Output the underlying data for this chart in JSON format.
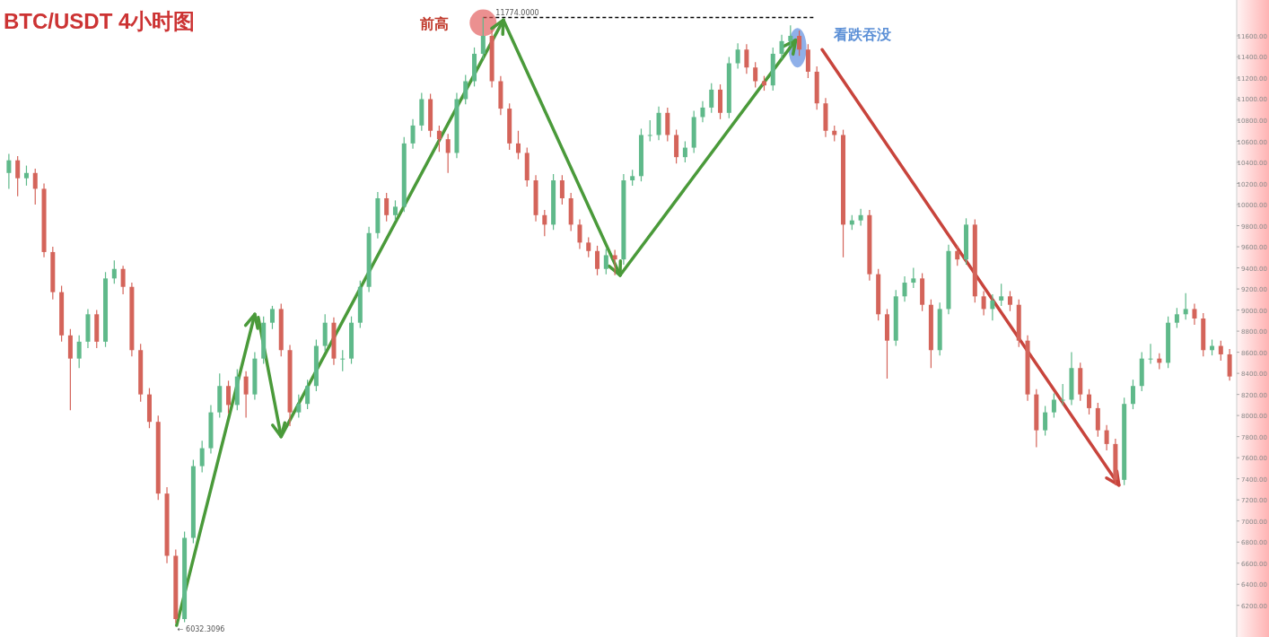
{
  "chart_data": {
    "type": "candlestick",
    "title": "BTC/USDT  4小时图",
    "categories": [
      null,
      null,
      null,
      null,
      null,
      null,
      null,
      null,
      null,
      null,
      null,
      null,
      null,
      null,
      null,
      null,
      null,
      null,
      null,
      null,
      null,
      null,
      null,
      null,
      null,
      null,
      null,
      null,
      null,
      null,
      null,
      null,
      null,
      null,
      null,
      null,
      null,
      null,
      null,
      null,
      null,
      null,
      null,
      null,
      null,
      null,
      null,
      null,
      null,
      null,
      null,
      null,
      null,
      null,
      null,
      null,
      null,
      null,
      null,
      null,
      null,
      null,
      null,
      null,
      null,
      null,
      null,
      null,
      null,
      null,
      null,
      null,
      null,
      null,
      null,
      null,
      null,
      null,
      null,
      null,
      null,
      null,
      null,
      null,
      null,
      null,
      null,
      null,
      null,
      null,
      null,
      null,
      null,
      null,
      null,
      null,
      null,
      null,
      null,
      null,
      null,
      null,
      null,
      null,
      null,
      null,
      null,
      null,
      null,
      null,
      null,
      null,
      null,
      null,
      null,
      null,
      null,
      null,
      null,
      null,
      null,
      null,
      null,
      null,
      null,
      null,
      null,
      null,
      null,
      null,
      null,
      null,
      null,
      null,
      null,
      null,
      null,
      null,
      null,
      null
    ],
    "colors": [
      "#5fb98a",
      "#d4645a",
      "#5fb98a",
      "#d4645a",
      "#d4645a",
      "#d4645a",
      "#d4645a",
      "#d4645a",
      "#5fb98a",
      "#5fb98a",
      "#d4645a",
      "#5fb98a",
      "#5fb98a",
      "#d4645a",
      "#d4645a",
      "#d4645a",
      "#d4645a",
      "#d4645a",
      "#d4645a",
      "#d4645a",
      "#5fb98a",
      "#5fb98a",
      "#5fb98a",
      "#5fb98a",
      "#5fb98a",
      "#d4645a",
      "#5fb98a",
      "#d4645a",
      "#5fb98a",
      "#5fb98a",
      "#5fb98a",
      "#d4645a",
      "#d4645a",
      "#5fb98a",
      "#5fb98a",
      "#5fb98a",
      "#5fb98a",
      "#d4645a",
      "#5fb98a",
      "#5fb98a",
      "#5fb98a",
      "#5fb98a",
      "#5fb98a",
      "#d4645a",
      "#5fb98a",
      "#5fb98a",
      "#5fb98a",
      "#5fb98a",
      "#d4645a",
      "#d4645a",
      "#d4645a",
      "#5fb98a",
      "#5fb98a",
      "#5fb98a",
      "#5fb98a",
      "#d4645a",
      "#d4645a",
      "#d4645a",
      "#d4645a",
      "#d4645a",
      "#d4645a",
      "#d4645a",
      "#5fb98a",
      "#d4645a",
      "#d4645a",
      "#d4645a",
      "#d4645a",
      "#d4645a",
      "#5fb98a",
      "#d4645a",
      "#5fb98a",
      "#5fb98a",
      "#5fb98a",
      "#5fb98a",
      "#5fb98a",
      "#d4645a",
      "#d4645a",
      "#5fb98a",
      "#5fb98a",
      "#5fb98a",
      "#5fb98a",
      "#d4645a",
      "#5fb98a",
      "#5fb98a",
      "#d4645a",
      "#d4645a",
      "#d4645a",
      "#5fb98a",
      "#5fb98a",
      "#5fb98a",
      "#d4645a",
      "#d4645a",
      "#d4645a",
      "#d4645a",
      "#d4645a",
      "#d4645a",
      "#5fb98a",
      "#5fb98a",
      "#d4645a",
      "#d4645a",
      "#d4645a",
      "#5fb98a",
      "#5fb98a",
      "#5fb98a",
      "#d4645a",
      "#d4645a",
      "#5fb98a",
      "#5fb98a",
      "#d4645a",
      "#5fb98a",
      "#d4645a",
      "#d4645a",
      "#5fb98a",
      "#5fb98a",
      "#d4645a",
      "#d4645a",
      "#d4645a",
      "#d4645a",
      "#5fb98a",
      "#5fb98a",
      "#5fb98a",
      "#5fb98a",
      "#d4645a",
      "#d4645a",
      "#d4645a",
      "#d4645a",
      "#d4645a",
      "#5fb98a",
      "#5fb98a",
      "#5fb98a",
      "#5fb98a",
      "#d4645a",
      "#5fb98a",
      "#5fb98a",
      "#5fb98a",
      "#d4645a",
      "#d4645a",
      "#5fb98a",
      "#d4645a",
      "#d4645a"
    ],
    "ohlc": [
      [
        10300,
        10480,
        10150,
        10420
      ],
      [
        10420,
        10460,
        10080,
        10250
      ],
      [
        10250,
        10370,
        10180,
        10300
      ],
      [
        10300,
        10340,
        10000,
        10150
      ],
      [
        10150,
        10200,
        9500,
        9550
      ],
      [
        9550,
        9600,
        9100,
        9170
      ],
      [
        9170,
        9230,
        8700,
        8760
      ],
      [
        8760,
        8820,
        8050,
        8540
      ],
      [
        8540,
        8760,
        8450,
        8700
      ],
      [
        8700,
        9010,
        8640,
        8960
      ],
      [
        8960,
        9000,
        8640,
        8700
      ],
      [
        8700,
        9360,
        8650,
        9300
      ],
      [
        9300,
        9470,
        9250,
        9390
      ],
      [
        9390,
        9420,
        9150,
        9220
      ],
      [
        9220,
        9260,
        8560,
        8620
      ],
      [
        8620,
        8680,
        8130,
        8200
      ],
      [
        8200,
        8260,
        7880,
        7940
      ],
      [
        7940,
        8000,
        7200,
        7260
      ],
      [
        7260,
        7320,
        6600,
        6670
      ],
      [
        6670,
        6730,
        6032.3096,
        6070
      ],
      [
        6070,
        6900,
        6040,
        6840
      ],
      [
        6840,
        7580,
        6790,
        7520
      ],
      [
        7520,
        7760,
        7460,
        7690
      ],
      [
        7690,
        8100,
        7640,
        8030
      ],
      [
        8030,
        8400,
        7980,
        8280
      ],
      [
        8280,
        8330,
        8020,
        8100
      ],
      [
        8100,
        8440,
        8050,
        8370
      ],
      [
        8370,
        8420,
        7980,
        8200
      ],
      [
        8200,
        8600,
        8150,
        8540
      ],
      [
        8540,
        8940,
        8490,
        8880
      ],
      [
        8880,
        9040,
        8820,
        9010
      ],
      [
        9010,
        9060,
        8560,
        8620
      ],
      [
        8620,
        8670,
        7900,
        8030
      ],
      [
        8030,
        8200,
        7980,
        8110
      ],
      [
        8110,
        8340,
        8060,
        8280
      ],
      [
        8280,
        8720,
        8230,
        8660
      ],
      [
        8660,
        8960,
        8610,
        8880
      ],
      [
        8880,
        8930,
        8480,
        8540
      ],
      [
        8540,
        8620,
        8420,
        8540
      ],
      [
        8540,
        8940,
        8490,
        8880
      ],
      [
        8880,
        9280,
        8830,
        9220
      ],
      [
        9220,
        9790,
        9170,
        9730
      ],
      [
        9730,
        10120,
        9680,
        10060
      ],
      [
        10060,
        10110,
        9840,
        9900
      ],
      [
        9900,
        10040,
        9850,
        9980
      ],
      [
        9980,
        10640,
        9930,
        10580
      ],
      [
        10580,
        10810,
        10530,
        10750
      ],
      [
        10750,
        11060,
        10700,
        11000
      ],
      [
        11000,
        11050,
        10640,
        10700
      ],
      [
        10700,
        10750,
        10500,
        10620
      ],
      [
        10620,
        10670,
        10300,
        10490
      ],
      [
        10490,
        11060,
        10440,
        11000
      ],
      [
        11000,
        11230,
        10950,
        11170
      ],
      [
        11170,
        11490,
        11120,
        11430
      ],
      [
        11430,
        11774,
        11380,
        11600
      ],
      [
        11600,
        11650,
        11110,
        11170
      ],
      [
        11170,
        11220,
        10850,
        10910
      ],
      [
        10910,
        10960,
        10520,
        10580
      ],
      [
        10580,
        10700,
        10430,
        10490
      ],
      [
        10490,
        10540,
        10170,
        10230
      ],
      [
        10230,
        10280,
        9840,
        9900
      ],
      [
        9900,
        9950,
        9700,
        9810
      ],
      [
        9810,
        10290,
        9760,
        10230
      ],
      [
        10230,
        10280,
        10000,
        10060
      ],
      [
        10060,
        10110,
        9750,
        9810
      ],
      [
        9810,
        9860,
        9580,
        9640
      ],
      [
        9640,
        9690,
        9500,
        9560
      ],
      [
        9560,
        9610,
        9330,
        9390
      ],
      [
        9390,
        9580,
        9340,
        9520
      ],
      [
        9520,
        9570,
        9330,
        9480
      ],
      [
        9480,
        10290,
        9430,
        10230
      ],
      [
        10230,
        10330,
        10180,
        10270
      ],
      [
        10270,
        10720,
        10220,
        10660
      ],
      [
        10660,
        10800,
        10600,
        10660
      ],
      [
        10660,
        10930,
        10610,
        10870
      ],
      [
        10870,
        10920,
        10600,
        10660
      ],
      [
        10660,
        10710,
        10390,
        10450
      ],
      [
        10450,
        10600,
        10400,
        10540
      ],
      [
        10540,
        10890,
        10490,
        10830
      ],
      [
        10830,
        10980,
        10780,
        10920
      ],
      [
        10920,
        11150,
        10870,
        11090
      ],
      [
        11090,
        11140,
        10810,
        10870
      ],
      [
        10870,
        11400,
        10820,
        11340
      ],
      [
        11340,
        11530,
        11290,
        11470
      ],
      [
        11470,
        11520,
        11240,
        11300
      ],
      [
        11300,
        11350,
        11110,
        11170
      ],
      [
        11170,
        11220,
        11080,
        11130
      ],
      [
        11130,
        11490,
        11080,
        11430
      ],
      [
        11430,
        11610,
        11380,
        11550
      ],
      [
        11550,
        11700,
        11500,
        11600
      ],
      [
        11600,
        11650,
        11410,
        11470
      ],
      [
        11470,
        11520,
        11200,
        11260
      ],
      [
        11260,
        11310,
        10900,
        10960
      ],
      [
        10960,
        11010,
        10640,
        10700
      ],
      [
        10700,
        10750,
        10600,
        10660
      ],
      [
        10660,
        10710,
        9500,
        9810
      ],
      [
        9810,
        9900,
        9760,
        9850
      ],
      [
        9850,
        9960,
        9800,
        9900
      ],
      [
        9900,
        9950,
        9280,
        9340
      ],
      [
        9340,
        9390,
        8900,
        8960
      ],
      [
        8960,
        9010,
        8350,
        8710
      ],
      [
        8710,
        9190,
        8660,
        9130
      ],
      [
        9130,
        9320,
        9080,
        9260
      ],
      [
        9260,
        9400,
        9210,
        9300
      ],
      [
        9300,
        9350,
        8990,
        9050
      ],
      [
        9050,
        9100,
        8450,
        8620
      ],
      [
        8620,
        9070,
        8570,
        9010
      ],
      [
        9010,
        9620,
        8960,
        9560
      ],
      [
        9560,
        9610,
        9420,
        9480
      ],
      [
        9480,
        9870,
        9430,
        9810
      ],
      [
        9810,
        9860,
        9070,
        9130
      ],
      [
        9130,
        9180,
        8950,
        9010
      ],
      [
        9010,
        9150,
        8900,
        9090
      ],
      [
        9090,
        9250,
        9040,
        9130
      ],
      [
        9130,
        9180,
        8990,
        9050
      ],
      [
        9050,
        9100,
        8650,
        8710
      ],
      [
        8710,
        8760,
        8140,
        8200
      ],
      [
        8200,
        8250,
        7700,
        7860
      ],
      [
        7860,
        8090,
        7810,
        8030
      ],
      [
        8030,
        8210,
        7980,
        8150
      ],
      [
        8150,
        8300,
        8100,
        8150
      ],
      [
        8150,
        8600,
        8100,
        8450
      ],
      [
        8450,
        8500,
        8140,
        8200
      ],
      [
        8200,
        8250,
        8010,
        8070
      ],
      [
        8070,
        8120,
        7800,
        7860
      ],
      [
        7860,
        7910,
        7670,
        7730
      ],
      [
        7730,
        7780,
        7340,
        7390
      ],
      [
        7390,
        8170,
        7340,
        8110
      ],
      [
        8110,
        8340,
        8060,
        8280
      ],
      [
        8280,
        8600,
        8230,
        8540
      ],
      [
        8540,
        8680,
        8490,
        8540
      ],
      [
        8540,
        8590,
        8440,
        8500
      ],
      [
        8500,
        8940,
        8450,
        8880
      ],
      [
        8880,
        9020,
        8830,
        8960
      ],
      [
        8960,
        9160,
        8910,
        9010
      ],
      [
        9010,
        9060,
        8860,
        8920
      ],
      [
        8920,
        8970,
        8560,
        8620
      ],
      [
        8620,
        8720,
        8570,
        8660
      ],
      [
        8660,
        8710,
        8520,
        8580
      ],
      [
        8580,
        8630,
        8330,
        8370
      ]
    ],
    "ylim": [
      5900,
      11940
    ],
    "yticks": [
      {
        "value": 6200,
        "label": "6200.00"
      },
      {
        "value": 6400,
        "label": "6400.00"
      },
      {
        "value": 6600,
        "label": "6600.00"
      },
      {
        "value": 6800,
        "label": "6800.00"
      },
      {
        "value": 7000,
        "label": "7000.00"
      },
      {
        "value": 7200,
        "label": "7200.00"
      },
      {
        "value": 7400,
        "label": "7400.00"
      },
      {
        "value": 7600,
        "label": "7600.00"
      },
      {
        "value": 7800,
        "label": "7800.00"
      },
      {
        "value": 8000,
        "label": "8000.00"
      },
      {
        "value": 8200,
        "label": "8200.00"
      },
      {
        "value": 8400,
        "label": "8400.00"
      },
      {
        "value": 8600,
        "label": "8600.00"
      },
      {
        "value": 8800,
        "label": "8800.00"
      },
      {
        "value": 9000,
        "label": "9000.00"
      },
      {
        "value": 9200,
        "label": "9200.00"
      },
      {
        "value": 9400,
        "label": "9400.00"
      },
      {
        "value": 9600,
        "label": "9600.00"
      },
      {
        "value": 9800,
        "label": "9800.00"
      },
      {
        "value": 10000,
        "label": "10000.00"
      },
      {
        "value": 10200,
        "label": "10200.00"
      },
      {
        "value": 10400,
        "label": "10400.00"
      },
      {
        "value": 10600,
        "label": "10600.00"
      },
      {
        "value": 10800,
        "label": "10800.00"
      },
      {
        "value": 11000,
        "label": "11000.00"
      },
      {
        "value": 11200,
        "label": "11200.00"
      },
      {
        "value": 11400,
        "label": "11400.00"
      },
      {
        "value": 11600,
        "label": "11600.00"
      }
    ],
    "ref_lines": [
      {
        "axis": "y",
        "value": 11774,
        "label": "11774.0000",
        "color": "#000000",
        "line_style": "dashed"
      }
    ],
    "annotations": [
      "前高",
      "看跌吞没",
      "← 6032.3096"
    ],
    "grid": false
  }
}
